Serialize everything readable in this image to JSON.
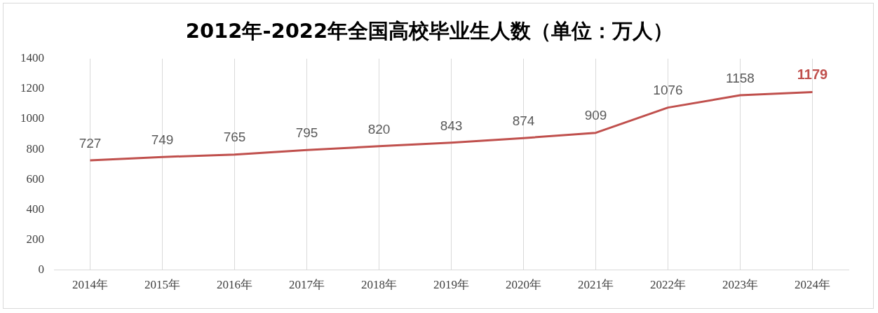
{
  "chart_data": {
    "type": "line",
    "title": "2012年-2022年全国高校毕业生人数（单位：万人）",
    "categories": [
      "2014年",
      "2015年",
      "2016年",
      "2017年",
      "2018年",
      "2019年",
      "2020年",
      "2021年",
      "2022年",
      "2023年",
      "2024年"
    ],
    "series": [
      {
        "color": "#c0504d",
        "values": [
          727,
          749,
          765,
          795,
          820,
          843,
          874,
          909,
          1076,
          1158,
          1179
        ]
      }
    ],
    "ylim": [
      0,
      1400
    ],
    "yticks": [
      0,
      200,
      400,
      600,
      800,
      1000,
      1200,
      1400
    ],
    "grid": "x",
    "legend": false,
    "marker": "none",
    "line_style": "solid",
    "data_labels": true
  }
}
